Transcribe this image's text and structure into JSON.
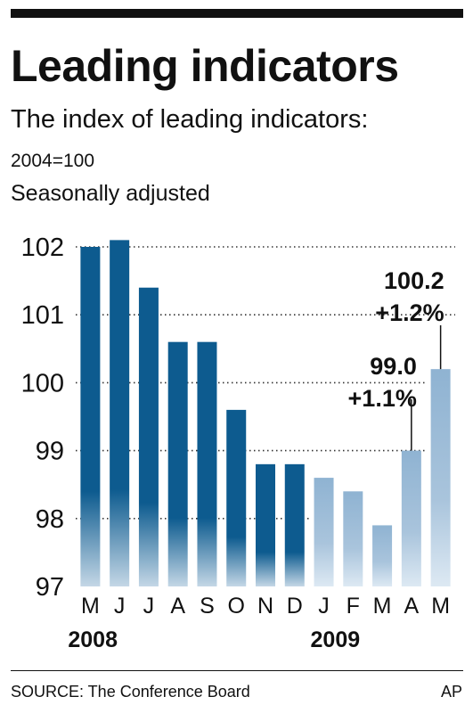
{
  "header": {
    "title": "Leading indicators",
    "subtitle": "The index of leading indicators:",
    "base_note": "2004=100",
    "adjust_note": "Seasonally adjusted"
  },
  "footer": {
    "source": "SOURCE: The Conference Board",
    "credit": "AP"
  },
  "colors": {
    "bar_2008_top": "#0d5b8f",
    "bar_2008_bottom": "#c4d7e6",
    "bar_2009_top": "#8fb3d2",
    "bar_2009_bottom": "#dde9f3",
    "text": "#111111",
    "grid": "#333333"
  },
  "chart_data": {
    "type": "bar",
    "categories": [
      "M",
      "J",
      "J",
      "A",
      "S",
      "O",
      "N",
      "D",
      "J",
      "F",
      "M",
      "A",
      "M"
    ],
    "values": [
      102.0,
      102.1,
      101.4,
      100.6,
      100.6,
      99.6,
      98.8,
      98.8,
      98.6,
      98.4,
      97.9,
      99.0,
      100.2
    ],
    "year_of_bar": [
      "2008",
      "2008",
      "2008",
      "2008",
      "2008",
      "2008",
      "2008",
      "2008",
      "2009",
      "2009",
      "2009",
      "2009",
      "2009"
    ],
    "year_labels": [
      "2008",
      "2009"
    ],
    "yticks": [
      "102",
      "101",
      "100",
      "99",
      "98",
      "97"
    ],
    "ylim": [
      97,
      102.3
    ],
    "grid": "dotted",
    "annotations": [
      {
        "category_index": 11,
        "value_label": "99.0",
        "change_label": "+1.1%"
      },
      {
        "category_index": 12,
        "value_label": "100.2",
        "change_label": "+1.2%"
      }
    ]
  }
}
